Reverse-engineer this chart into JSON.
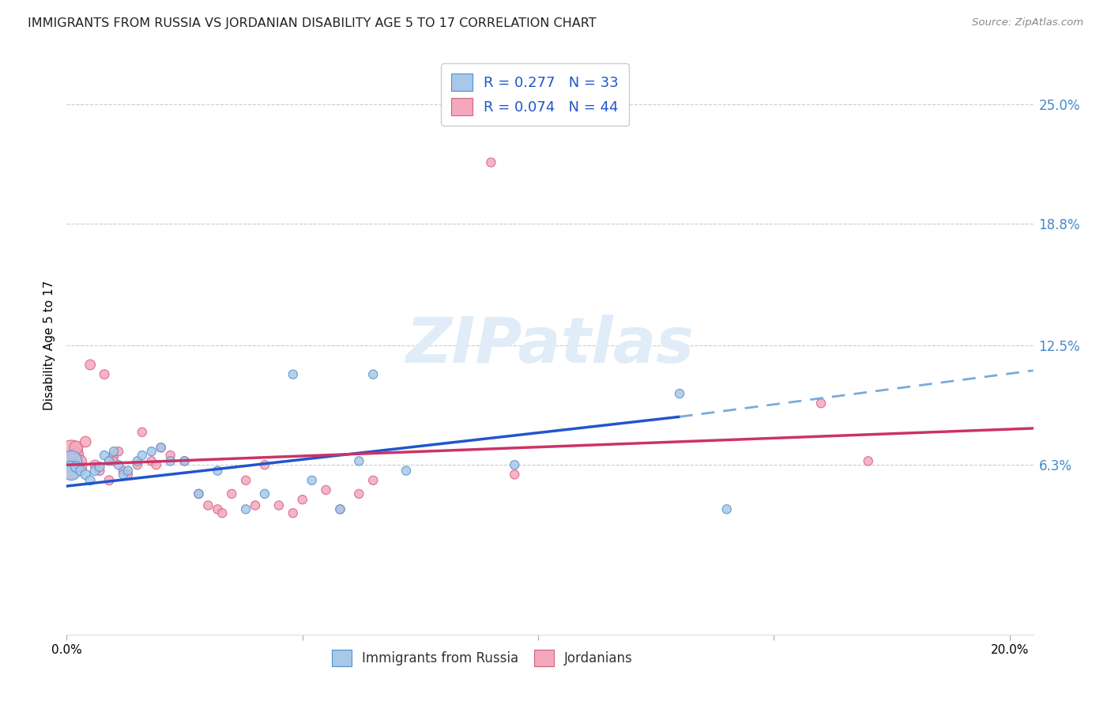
{
  "title": "IMMIGRANTS FROM RUSSIA VS JORDANIAN DISABILITY AGE 5 TO 17 CORRELATION CHART",
  "source": "Source: ZipAtlas.com",
  "ylabel": "Disability Age 5 to 17",
  "xlim": [
    0.0,
    0.205
  ],
  "ylim": [
    -0.025,
    0.275
  ],
  "yticks": [
    0.063,
    0.125,
    0.188,
    0.25
  ],
  "ytick_labels": [
    "6.3%",
    "12.5%",
    "18.8%",
    "25.0%"
  ],
  "xticks": [
    0.0,
    0.05,
    0.1,
    0.15,
    0.2
  ],
  "xtick_labels": [
    "0.0%",
    "",
    "",
    "",
    "20.0%"
  ],
  "watermark": "ZIPatlas",
  "color_russia": "#a8c8e8",
  "color_jordan": "#f4a8bc",
  "color_russia_edge": "#5090d0",
  "color_jordan_edge": "#d06080",
  "color_russia_line": "#2255cc",
  "color_jordan_line": "#cc3366",
  "color_russia_dash": "#7aaadd",
  "russia_x": [
    0.001,
    0.001,
    0.002,
    0.003,
    0.004,
    0.005,
    0.006,
    0.007,
    0.008,
    0.009,
    0.01,
    0.011,
    0.012,
    0.013,
    0.015,
    0.016,
    0.018,
    0.02,
    0.022,
    0.025,
    0.028,
    0.032,
    0.038,
    0.042,
    0.048,
    0.052,
    0.058,
    0.062,
    0.065,
    0.072,
    0.095,
    0.13,
    0.14
  ],
  "russia_y": [
    0.065,
    0.06,
    0.062,
    0.06,
    0.058,
    0.055,
    0.06,
    0.062,
    0.068,
    0.065,
    0.07,
    0.063,
    0.058,
    0.06,
    0.065,
    0.068,
    0.07,
    0.072,
    0.065,
    0.065,
    0.048,
    0.06,
    0.04,
    0.048,
    0.11,
    0.055,
    0.04,
    0.065,
    0.11,
    0.06,
    0.063,
    0.1,
    0.04
  ],
  "jordan_x": [
    0.001,
    0.001,
    0.001,
    0.002,
    0.002,
    0.003,
    0.003,
    0.004,
    0.005,
    0.006,
    0.007,
    0.008,
    0.009,
    0.01,
    0.01,
    0.011,
    0.012,
    0.013,
    0.015,
    0.016,
    0.018,
    0.019,
    0.02,
    0.022,
    0.025,
    0.028,
    0.03,
    0.032,
    0.033,
    0.035,
    0.038,
    0.04,
    0.042,
    0.045,
    0.048,
    0.05,
    0.055,
    0.058,
    0.062,
    0.065,
    0.09,
    0.095,
    0.16,
    0.17
  ],
  "jordan_y": [
    0.07,
    0.065,
    0.06,
    0.068,
    0.072,
    0.062,
    0.065,
    0.075,
    0.115,
    0.063,
    0.06,
    0.11,
    0.055,
    0.068,
    0.065,
    0.07,
    0.06,
    0.058,
    0.063,
    0.08,
    0.065,
    0.063,
    0.072,
    0.068,
    0.065,
    0.048,
    0.042,
    0.04,
    0.038,
    0.048,
    0.055,
    0.042,
    0.063,
    0.042,
    0.038,
    0.045,
    0.05,
    0.04,
    0.048,
    0.055,
    0.22,
    0.058,
    0.095,
    0.065
  ],
  "russia_size": [
    300,
    250,
    80,
    70,
    65,
    60,
    60,
    60,
    55,
    55,
    55,
    55,
    55,
    55,
    55,
    55,
    55,
    55,
    55,
    55,
    55,
    55,
    55,
    55,
    55,
    55,
    55,
    55,
    55,
    55,
    55,
    55,
    55
  ],
  "jordan_size": [
    350,
    280,
    200,
    150,
    120,
    100,
    90,
    80,
    70,
    65,
    60,
    60,
    60,
    60,
    55,
    55,
    55,
    55,
    55,
    55,
    55,
    55,
    55,
    55,
    55,
    55,
    55,
    55,
    55,
    55,
    55,
    55,
    55,
    55,
    55,
    55,
    55,
    55,
    55,
    55,
    55,
    55,
    55,
    55
  ],
  "line_russia_x0": 0.0,
  "line_russia_y0": 0.052,
  "line_russia_x1": 0.13,
  "line_russia_y1": 0.088,
  "line_russia_dash_x1": 0.205,
  "line_russia_dash_y1": 0.112,
  "line_jordan_x0": 0.0,
  "line_jordan_y0": 0.063,
  "line_jordan_x1": 0.205,
  "line_jordan_y1": 0.082
}
